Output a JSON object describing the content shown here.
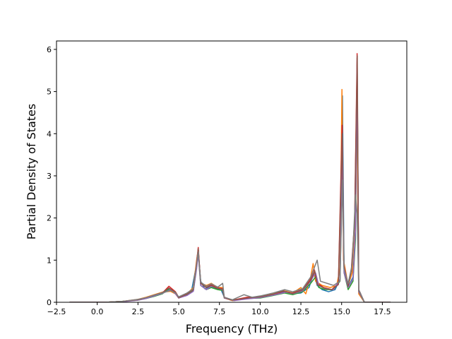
{
  "chart_data": {
    "type": "line",
    "title": "",
    "xlabel": "Frequency (THz)",
    "ylabel": "Partial Density of States",
    "xlim": [
      -2.5,
      19.0
    ],
    "ylim": [
      0,
      6.2
    ],
    "grid": false,
    "legend": "none",
    "x_ticks": [
      -2.5,
      0.0,
      2.5,
      5.0,
      7.5,
      10.0,
      12.5,
      15.0,
      17.5
    ],
    "x_tick_labels": [
      "−2.5",
      "0.0",
      "2.5",
      "5.0",
      "7.5",
      "10.0",
      "12.5",
      "15.0",
      "17.5"
    ],
    "y_ticks": [
      0,
      1,
      2,
      3,
      4,
      5,
      6
    ],
    "y_tick_labels": [
      "0",
      "1",
      "2",
      "3",
      "4",
      "5",
      "6"
    ],
    "series": [
      {
        "color": "#1f77b4",
        "points": [
          [
            -1.7,
            0
          ],
          [
            0.5,
            0
          ],
          [
            1.5,
            0.02
          ],
          [
            2.5,
            0.06
          ],
          [
            3.0,
            0.1
          ],
          [
            3.5,
            0.15
          ],
          [
            4.0,
            0.22
          ],
          [
            4.4,
            0.3
          ],
          [
            4.8,
            0.24
          ],
          [
            5.0,
            0.12
          ],
          [
            5.4,
            0.15
          ],
          [
            5.8,
            0.3
          ],
          [
            6.1,
            0.9
          ],
          [
            6.2,
            1.22
          ],
          [
            6.35,
            0.5
          ],
          [
            6.6,
            0.32
          ],
          [
            7.0,
            0.38
          ],
          [
            7.3,
            0.32
          ],
          [
            7.6,
            0.3
          ],
          [
            7.8,
            0.12
          ],
          [
            8.2,
            0.05
          ],
          [
            9.0,
            0.08
          ],
          [
            9.6,
            0.1
          ],
          [
            10.0,
            0.12
          ],
          [
            10.5,
            0.15
          ],
          [
            11.0,
            0.2
          ],
          [
            11.5,
            0.25
          ],
          [
            12.0,
            0.2
          ],
          [
            12.5,
            0.22
          ],
          [
            13.0,
            0.35
          ],
          [
            13.3,
            0.7
          ],
          [
            13.5,
            0.4
          ],
          [
            13.8,
            0.3
          ],
          [
            14.2,
            0.25
          ],
          [
            14.6,
            0.3
          ],
          [
            14.9,
            0.55
          ],
          [
            15.05,
            4.9
          ],
          [
            15.15,
            0.8
          ],
          [
            15.4,
            0.35
          ],
          [
            15.7,
            0.6
          ],
          [
            15.85,
            1.8
          ],
          [
            15.95,
            5.8
          ],
          [
            16.05,
            0.3
          ],
          [
            16.4,
            0
          ],
          [
            18.0,
            0
          ]
        ]
      },
      {
        "color": "#ff7f0e",
        "points": [
          [
            -1.7,
            0
          ],
          [
            0.5,
            0
          ],
          [
            1.5,
            0.02
          ],
          [
            2.5,
            0.07
          ],
          [
            3.0,
            0.12
          ],
          [
            3.5,
            0.18
          ],
          [
            4.0,
            0.24
          ],
          [
            4.5,
            0.26
          ],
          [
            4.8,
            0.2
          ],
          [
            5.0,
            0.1
          ],
          [
            5.5,
            0.2
          ],
          [
            5.9,
            0.35
          ],
          [
            6.1,
            1.0
          ],
          [
            6.2,
            1.25
          ],
          [
            6.35,
            0.45
          ],
          [
            6.7,
            0.4
          ],
          [
            7.0,
            0.45
          ],
          [
            7.4,
            0.35
          ],
          [
            7.7,
            0.35
          ],
          [
            7.8,
            0.1
          ],
          [
            8.3,
            0.04
          ],
          [
            9.2,
            0.1
          ],
          [
            10.0,
            0.14
          ],
          [
            10.8,
            0.2
          ],
          [
            11.4,
            0.28
          ],
          [
            12.0,
            0.22
          ],
          [
            12.5,
            0.35
          ],
          [
            12.8,
            0.2
          ],
          [
            13.1,
            0.6
          ],
          [
            13.25,
            0.92
          ],
          [
            13.4,
            0.5
          ],
          [
            13.8,
            0.4
          ],
          [
            14.3,
            0.35
          ],
          [
            14.7,
            0.4
          ],
          [
            14.9,
            0.8
          ],
          [
            15.02,
            5.05
          ],
          [
            15.12,
            1.0
          ],
          [
            15.4,
            0.4
          ],
          [
            15.65,
            0.7
          ],
          [
            15.8,
            1.9
          ],
          [
            15.93,
            4.6
          ],
          [
            16.05,
            0.2
          ],
          [
            16.4,
            0
          ],
          [
            18.0,
            0
          ]
        ]
      },
      {
        "color": "#2ca02c",
        "points": [
          [
            -1.7,
            0
          ],
          [
            0.5,
            0
          ],
          [
            1.5,
            0.02
          ],
          [
            2.5,
            0.05
          ],
          [
            3.0,
            0.09
          ],
          [
            3.5,
            0.14
          ],
          [
            4.0,
            0.2
          ],
          [
            4.4,
            0.32
          ],
          [
            4.8,
            0.22
          ],
          [
            5.0,
            0.1
          ],
          [
            5.5,
            0.18
          ],
          [
            5.9,
            0.28
          ],
          [
            6.1,
            0.85
          ],
          [
            6.2,
            1.18
          ],
          [
            6.35,
            0.4
          ],
          [
            6.7,
            0.3
          ],
          [
            7.0,
            0.35
          ],
          [
            7.4,
            0.3
          ],
          [
            7.7,
            0.28
          ],
          [
            7.8,
            0.1
          ],
          [
            8.4,
            0.05
          ],
          [
            9.2,
            0.09
          ],
          [
            10.0,
            0.1
          ],
          [
            10.8,
            0.16
          ],
          [
            11.5,
            0.22
          ],
          [
            12.0,
            0.18
          ],
          [
            12.6,
            0.25
          ],
          [
            13.1,
            0.45
          ],
          [
            13.4,
            0.6
          ],
          [
            13.6,
            0.35
          ],
          [
            14.0,
            0.3
          ],
          [
            14.5,
            0.3
          ],
          [
            14.9,
            0.5
          ],
          [
            15.05,
            3.2
          ],
          [
            15.15,
            0.7
          ],
          [
            15.4,
            0.3
          ],
          [
            15.7,
            0.5
          ],
          [
            15.85,
            1.5
          ],
          [
            15.95,
            5.5
          ],
          [
            16.05,
            0.25
          ],
          [
            16.4,
            0
          ],
          [
            18.0,
            0
          ]
        ]
      },
      {
        "color": "#d62728",
        "points": [
          [
            -1.7,
            0
          ],
          [
            0.5,
            0
          ],
          [
            1.5,
            0.02
          ],
          [
            2.5,
            0.06
          ],
          [
            3.0,
            0.1
          ],
          [
            3.5,
            0.16
          ],
          [
            4.0,
            0.22
          ],
          [
            4.4,
            0.38
          ],
          [
            4.8,
            0.25
          ],
          [
            5.0,
            0.12
          ],
          [
            5.5,
            0.2
          ],
          [
            5.9,
            0.3
          ],
          [
            6.1,
            0.95
          ],
          [
            6.2,
            1.3
          ],
          [
            6.35,
            0.45
          ],
          [
            6.7,
            0.35
          ],
          [
            7.0,
            0.42
          ],
          [
            7.3,
            0.35
          ],
          [
            7.7,
            0.32
          ],
          [
            7.8,
            0.12
          ],
          [
            8.3,
            0.05
          ],
          [
            9.2,
            0.12
          ],
          [
            10.0,
            0.12
          ],
          [
            10.8,
            0.18
          ],
          [
            11.4,
            0.26
          ],
          [
            12.0,
            0.22
          ],
          [
            12.6,
            0.3
          ],
          [
            13.1,
            0.55
          ],
          [
            13.3,
            0.8
          ],
          [
            13.5,
            0.45
          ],
          [
            13.9,
            0.35
          ],
          [
            14.4,
            0.3
          ],
          [
            14.8,
            0.45
          ],
          [
            15.03,
            4.2
          ],
          [
            15.13,
            0.9
          ],
          [
            15.4,
            0.4
          ],
          [
            15.6,
            0.8
          ],
          [
            15.8,
            1.95
          ],
          [
            15.95,
            5.9
          ],
          [
            16.05,
            0.3
          ],
          [
            16.4,
            0
          ],
          [
            18.0,
            0
          ]
        ]
      },
      {
        "color": "#9467bd",
        "points": [
          [
            -1.7,
            0
          ],
          [
            0.5,
            0
          ],
          [
            1.5,
            0.01
          ],
          [
            2.5,
            0.05
          ],
          [
            3.0,
            0.09
          ],
          [
            3.5,
            0.15
          ],
          [
            4.0,
            0.21
          ],
          [
            4.5,
            0.3
          ],
          [
            4.8,
            0.2
          ],
          [
            5.0,
            0.1
          ],
          [
            5.5,
            0.16
          ],
          [
            5.9,
            0.26
          ],
          [
            6.1,
            0.8
          ],
          [
            6.2,
            1.15
          ],
          [
            6.35,
            0.4
          ],
          [
            6.7,
            0.3
          ],
          [
            7.0,
            0.38
          ],
          [
            7.4,
            0.33
          ],
          [
            7.7,
            0.3
          ],
          [
            7.8,
            0.1
          ],
          [
            8.4,
            0.04
          ],
          [
            9.2,
            0.08
          ],
          [
            10.0,
            0.11
          ],
          [
            10.8,
            0.17
          ],
          [
            11.6,
            0.24
          ],
          [
            12.0,
            0.2
          ],
          [
            12.6,
            0.27
          ],
          [
            13.1,
            0.5
          ],
          [
            13.4,
            0.7
          ],
          [
            13.6,
            0.4
          ],
          [
            14.0,
            0.32
          ],
          [
            14.5,
            0.3
          ],
          [
            14.9,
            0.55
          ],
          [
            15.05,
            3.8
          ],
          [
            15.15,
            0.7
          ],
          [
            15.4,
            0.35
          ],
          [
            15.7,
            0.55
          ],
          [
            15.85,
            1.7
          ],
          [
            15.95,
            5.6
          ],
          [
            16.05,
            0.25
          ],
          [
            16.4,
            0
          ],
          [
            18.0,
            0
          ]
        ]
      },
      {
        "color": "#8c564b",
        "points": [
          [
            -1.7,
            0
          ],
          [
            0.5,
            0
          ],
          [
            1.5,
            0.02
          ],
          [
            2.5,
            0.06
          ],
          [
            3.0,
            0.11
          ],
          [
            3.5,
            0.17
          ],
          [
            4.0,
            0.23
          ],
          [
            4.4,
            0.34
          ],
          [
            4.8,
            0.24
          ],
          [
            5.0,
            0.11
          ],
          [
            5.5,
            0.19
          ],
          [
            5.9,
            0.3
          ],
          [
            6.1,
            0.92
          ],
          [
            6.2,
            1.27
          ],
          [
            6.35,
            0.45
          ],
          [
            6.7,
            0.35
          ],
          [
            7.0,
            0.4
          ],
          [
            7.3,
            0.34
          ],
          [
            7.7,
            0.31
          ],
          [
            7.8,
            0.11
          ],
          [
            8.3,
            0.05
          ],
          [
            9.2,
            0.1
          ],
          [
            10.0,
            0.13
          ],
          [
            10.8,
            0.19
          ],
          [
            11.4,
            0.27
          ],
          [
            12.0,
            0.21
          ],
          [
            12.6,
            0.29
          ],
          [
            13.1,
            0.52
          ],
          [
            13.35,
            0.75
          ],
          [
            13.5,
            0.42
          ],
          [
            13.9,
            0.34
          ],
          [
            14.4,
            0.3
          ],
          [
            14.8,
            0.42
          ],
          [
            15.04,
            4.0
          ],
          [
            15.14,
            0.85
          ],
          [
            15.4,
            0.38
          ],
          [
            15.6,
            0.75
          ],
          [
            15.8,
            1.9
          ],
          [
            15.96,
            5.85
          ],
          [
            16.05,
            0.28
          ],
          [
            16.4,
            0
          ],
          [
            18.0,
            0
          ]
        ]
      },
      {
        "color": "#7f7f7f",
        "points": [
          [
            -1.7,
            0
          ],
          [
            0.5,
            0
          ],
          [
            1.5,
            0.02
          ],
          [
            2.5,
            0.07
          ],
          [
            3.0,
            0.11
          ],
          [
            3.5,
            0.17
          ],
          [
            4.0,
            0.22
          ],
          [
            4.5,
            0.28
          ],
          [
            4.8,
            0.22
          ],
          [
            5.0,
            0.13
          ],
          [
            5.5,
            0.22
          ],
          [
            5.9,
            0.32
          ],
          [
            6.1,
            0.9
          ],
          [
            6.2,
            1.2
          ],
          [
            6.35,
            0.48
          ],
          [
            6.7,
            0.38
          ],
          [
            7.0,
            0.44
          ],
          [
            7.4,
            0.36
          ],
          [
            7.7,
            0.45
          ],
          [
            7.8,
            0.12
          ],
          [
            8.3,
            0.06
          ],
          [
            9.0,
            0.18
          ],
          [
            9.5,
            0.12
          ],
          [
            10.0,
            0.15
          ],
          [
            10.8,
            0.22
          ],
          [
            11.5,
            0.3
          ],
          [
            12.0,
            0.25
          ],
          [
            12.6,
            0.32
          ],
          [
            13.1,
            0.6
          ],
          [
            13.5,
            1.0
          ],
          [
            13.7,
            0.5
          ],
          [
            14.1,
            0.45
          ],
          [
            14.5,
            0.4
          ],
          [
            14.9,
            0.5
          ],
          [
            15.05,
            2.9
          ],
          [
            15.15,
            0.8
          ],
          [
            15.4,
            0.45
          ],
          [
            15.65,
            0.9
          ],
          [
            15.85,
            2.55
          ],
          [
            15.95,
            2.1
          ],
          [
            16.05,
            0.3
          ],
          [
            16.4,
            0
          ],
          [
            18.0,
            0
          ]
        ]
      }
    ]
  }
}
